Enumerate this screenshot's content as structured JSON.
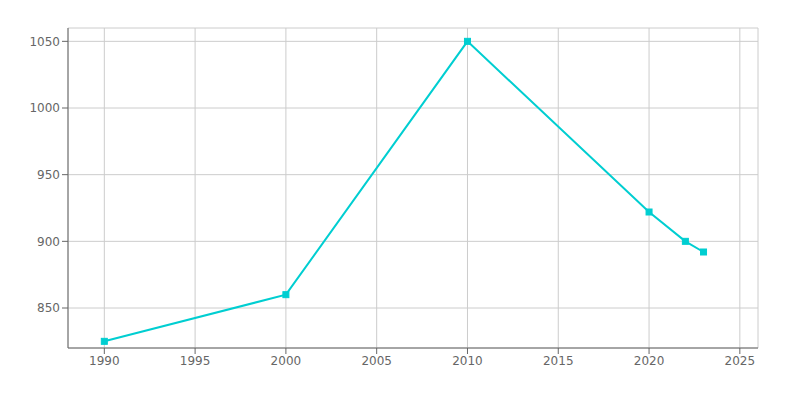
{
  "chart_data": {
    "type": "line",
    "x": [
      1990,
      2000,
      2010,
      2020,
      2022,
      2023
    ],
    "values": [
      825,
      860,
      1050,
      922,
      900,
      892
    ],
    "color": "#00CED1",
    "marker": "square",
    "xlim": [
      1988,
      2026
    ],
    "ylim": [
      820,
      1060
    ],
    "xticks": [
      1990,
      1995,
      2000,
      2005,
      2010,
      2015,
      2020,
      2025
    ],
    "yticks": [
      850,
      900,
      950,
      1000,
      1050
    ],
    "grid": true
  }
}
